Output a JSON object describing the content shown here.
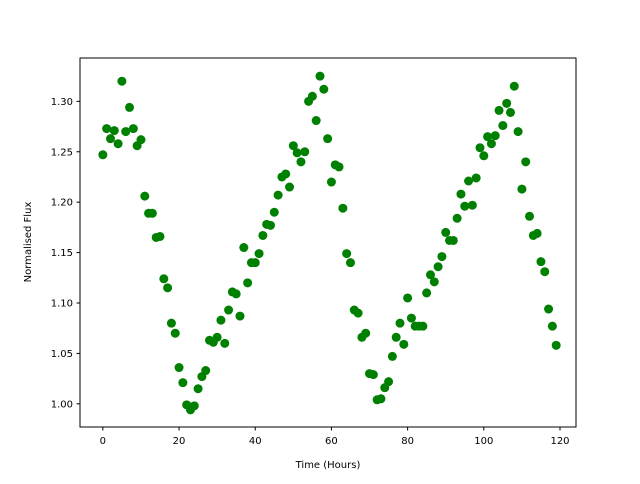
{
  "chart_data": {
    "type": "scatter",
    "title": "",
    "xlabel": "Time (Hours)",
    "ylabel": "Normalised Flux",
    "xlim": [
      -6.0,
      124.2
    ],
    "ylim": [
      0.977,
      1.343
    ],
    "xticks": [
      "0",
      "20",
      "40",
      "60",
      "80",
      "100",
      "120"
    ],
    "yticks": [
      "1.00",
      "1.05",
      "1.10",
      "1.15",
      "1.20",
      "1.25",
      "1.30"
    ],
    "grid": false,
    "marker_color": "#008000",
    "series": [
      {
        "x": [
          0,
          1,
          2,
          3,
          4,
          5,
          6,
          7,
          8,
          9,
          10,
          11,
          12,
          13,
          14,
          15,
          16,
          17,
          18,
          19,
          20,
          21,
          22,
          23,
          24,
          25,
          26,
          27,
          28,
          29,
          30,
          31,
          32,
          33,
          34,
          35,
          36,
          37,
          38,
          39,
          40,
          41,
          42,
          43,
          44,
          45,
          46,
          47,
          48,
          49,
          50,
          51,
          52,
          53,
          54,
          55,
          56,
          57,
          58,
          59,
          60,
          61,
          62,
          63,
          64,
          65,
          66,
          67,
          68,
          69,
          70,
          71,
          72,
          73,
          74,
          75,
          76,
          77,
          78,
          79,
          80,
          81,
          82,
          83,
          84,
          85,
          86,
          87,
          88,
          89,
          90,
          91,
          92,
          93,
          94,
          95,
          96,
          97,
          98,
          99,
          100,
          101,
          102,
          103,
          104,
          105,
          106,
          107,
          108,
          109,
          110,
          111,
          112,
          113,
          114,
          115,
          116,
          117,
          118,
          119
        ],
        "y": [
          1.247,
          1.273,
          1.263,
          1.271,
          1.258,
          1.32,
          1.27,
          1.294,
          1.273,
          1.256,
          1.262,
          1.206,
          1.189,
          1.189,
          1.165,
          1.166,
          1.124,
          1.115,
          1.08,
          1.07,
          1.036,
          1.021,
          0.999,
          0.994,
          0.998,
          1.015,
          1.027,
          1.033,
          1.063,
          1.061,
          1.066,
          1.083,
          1.06,
          1.093,
          1.111,
          1.109,
          1.087,
          1.155,
          1.12,
          1.14,
          1.14,
          1.149,
          1.167,
          1.178,
          1.177,
          1.19,
          1.207,
          1.225,
          1.228,
          1.215,
          1.256,
          1.249,
          1.24,
          1.25,
          1.3,
          1.305,
          1.281,
          1.325,
          1.312,
          1.263,
          1.22,
          1.237,
          1.235,
          1.194,
          1.149,
          1.14,
          1.093,
          1.09,
          1.066,
          1.07,
          1.03,
          1.029,
          1.004,
          1.005,
          1.016,
          1.022,
          1.047,
          1.066,
          1.08,
          1.059,
          1.105,
          1.085,
          1.077,
          1.077,
          1.077,
          1.11,
          1.128,
          1.121,
          1.136,
          1.146,
          1.17,
          1.162,
          1.162,
          1.184,
          1.208,
          1.196,
          1.221,
          1.197,
          1.224,
          1.254,
          1.246,
          1.265,
          1.258,
          1.266,
          1.291,
          1.276,
          1.298,
          1.289,
          1.315,
          1.27,
          1.213,
          1.24,
          1.186,
          1.167,
          1.169,
          1.141,
          1.131,
          1.094,
          1.077,
          1.058
        ]
      }
    ]
  }
}
